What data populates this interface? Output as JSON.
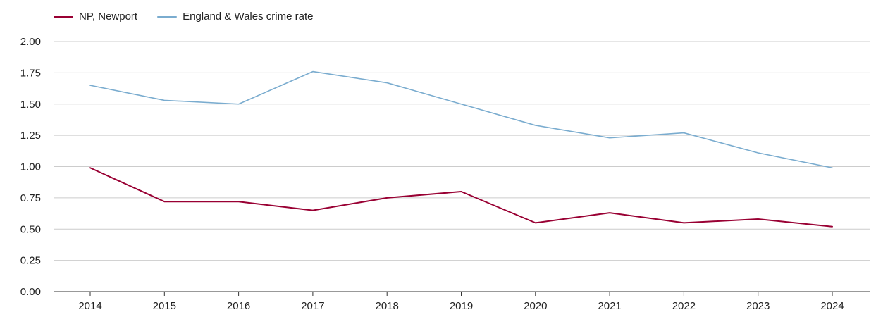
{
  "chart_data": {
    "type": "line",
    "title": "",
    "xlabel": "",
    "ylabel": "",
    "categories": [
      "2014",
      "2015",
      "2016",
      "2017",
      "2018",
      "2019",
      "2020",
      "2021",
      "2022",
      "2023",
      "2024"
    ],
    "ylim": [
      0,
      2
    ],
    "yticks": [
      "0.00",
      "0.25",
      "0.50",
      "0.75",
      "1.00",
      "1.25",
      "1.50",
      "1.75",
      "2.00"
    ],
    "grid": true,
    "legend_position": "top-left",
    "series": [
      {
        "name": "NP, Newport",
        "color": "#990033",
        "values": [
          0.99,
          0.72,
          0.72,
          0.65,
          0.75,
          0.8,
          0.55,
          0.63,
          0.55,
          0.58,
          0.52
        ]
      },
      {
        "name": "England & Wales crime rate",
        "color": "#7aaccf",
        "values": [
          1.65,
          1.53,
          1.5,
          1.76,
          1.67,
          1.5,
          1.33,
          1.23,
          1.27,
          1.11,
          0.99
        ]
      }
    ]
  }
}
